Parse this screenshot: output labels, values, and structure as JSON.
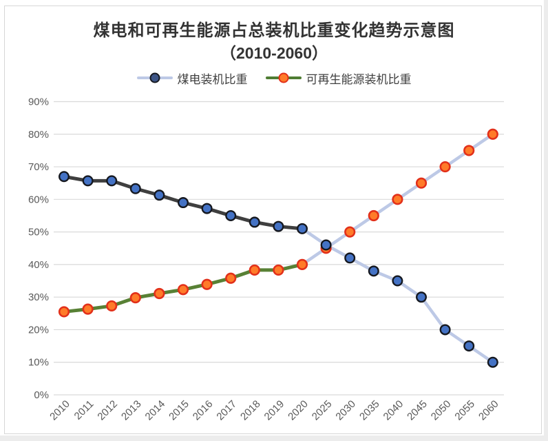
{
  "title": "煤电和可再生能源占总装机比重变化趋势示意图",
  "subtitle": "（2010-2060）",
  "legend": {
    "items": [
      {
        "label": "煤电装机比重",
        "line_color": "#bdc9e6",
        "marker_fill": "#3d5586",
        "marker_stroke": "#15181f"
      },
      {
        "label": "可再生能源装机比重",
        "line_color": "#4f7d33",
        "marker_fill": "#ff7b29",
        "marker_stroke": "#e2301a"
      }
    ]
  },
  "chart_data": {
    "type": "line",
    "title": "煤电和可再生能源占总装机比重变化趋势示意图（2010-2060）",
    "categories": [
      "2010",
      "2011",
      "2012",
      "2013",
      "2014",
      "2015",
      "2016",
      "2017",
      "2018",
      "2019",
      "2020",
      "2025",
      "2030",
      "2035",
      "2040",
      "2045",
      "2050",
      "2055",
      "2060"
    ],
    "series": [
      {
        "name": "煤电装机比重",
        "values": [
          67,
          65.7,
          65.7,
          63.3,
          61.3,
          59,
          57.2,
          55,
          53,
          51.7,
          51,
          46,
          42,
          38,
          35,
          30,
          20,
          15,
          10
        ]
      },
      {
        "name": "可再生能源装机比重",
        "values": [
          25.5,
          26.3,
          27.3,
          29.8,
          31.1,
          32.3,
          33.9,
          35.8,
          38.3,
          38.3,
          40,
          45,
          50,
          55,
          60,
          65,
          70,
          75,
          80
        ]
      }
    ],
    "split_index": 10,
    "style_note": "solid dark-gray (coal) and olive-green (renewables) lines through 2020, light periwinkle projection lines 2020-2060",
    "ylim": [
      0,
      90
    ],
    "ytick_step": 10,
    "ytick_format": "percent",
    "xlabel": "",
    "ylabel": "",
    "grid": "horizontal",
    "legend_position": "top",
    "colors": {
      "coal_line_historical": "#3f3f3f",
      "coal_line_projection": "#bdc9e6",
      "coal_marker_fill": "#4472c4",
      "coal_marker_stroke": "#15181f",
      "renewable_line_historical": "#588135",
      "renewable_line_projection": "#bdc9e6",
      "renewable_marker_fill": "#ff7b29",
      "renewable_marker_stroke": "#e2301a",
      "gridline": "#d9d9d9",
      "axis_label": "#595959",
      "frame_border": "#d6d6d6"
    }
  }
}
